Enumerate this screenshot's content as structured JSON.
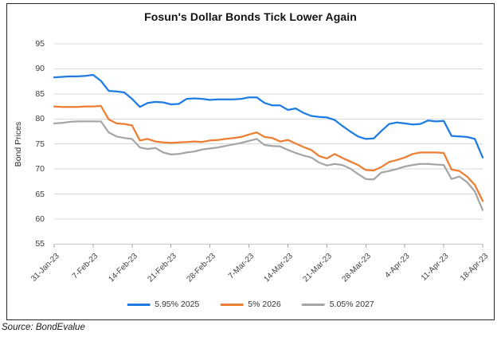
{
  "chart_data": {
    "type": "line",
    "title": "Fosun's Dollar Bonds Tick Lower Again",
    "ylabel": "Bond Prices",
    "source": "Source: BondEvalue",
    "ylim": [
      55,
      95
    ],
    "ytick_step": 5,
    "y_tick_labels": [
      "95",
      "90",
      "85",
      "80",
      "75",
      "70",
      "65",
      "60",
      "55"
    ],
    "grid": true,
    "legend_position": "bottom",
    "n_points": 56,
    "x_tick_indices": [
      0,
      5,
      10,
      15,
      20,
      25,
      30,
      35,
      40,
      45,
      50,
      55
    ],
    "x_tick_labels": [
      "31-Jan-23",
      "7-Feb-23",
      "14-Feb-23",
      "21-Feb-23",
      "28-Feb-23",
      "7-Mar-23",
      "14-Mar-23",
      "21-Mar-23",
      "28-Mar-23",
      "4-Apr-23",
      "11-Apr-23",
      "18-Apr-23"
    ],
    "series": [
      {
        "name": "5.95% 2025",
        "color": "#1E7BE4",
        "values": [
          88.3,
          88.4,
          88.5,
          88.5,
          88.6,
          88.8,
          87.6,
          85.6,
          85.5,
          85.3,
          84.0,
          82.4,
          83.2,
          83.4,
          83.3,
          82.9,
          83.0,
          84.0,
          84.1,
          84.0,
          83.8,
          83.9,
          83.9,
          83.9,
          84.0,
          84.3,
          84.3,
          83.2,
          82.7,
          82.7,
          81.8,
          82.1,
          81.2,
          80.6,
          80.4,
          80.3,
          79.8,
          78.6,
          77.5,
          76.5,
          76.0,
          76.1,
          77.6,
          79.0,
          79.3,
          79.1,
          78.9,
          79.0,
          79.7,
          79.5,
          79.6,
          76.6,
          76.5,
          76.4,
          76.0,
          72.3
        ]
      },
      {
        "name": "5% 2026",
        "color": "#ED7D31",
        "values": [
          82.5,
          82.4,
          82.4,
          82.4,
          82.5,
          82.5,
          82.6,
          79.9,
          79.1,
          79.0,
          78.7,
          75.7,
          76.0,
          75.5,
          75.3,
          75.2,
          75.3,
          75.4,
          75.5,
          75.4,
          75.7,
          75.8,
          76.0,
          76.2,
          76.4,
          76.9,
          77.3,
          76.4,
          76.2,
          75.5,
          75.8,
          75.1,
          74.4,
          73.8,
          72.6,
          72.1,
          73.0,
          72.2,
          71.5,
          70.8,
          69.8,
          69.7,
          70.4,
          71.4,
          71.8,
          72.3,
          73.0,
          73.3,
          73.3,
          73.3,
          73.2,
          69.9,
          69.6,
          68.5,
          66.8,
          63.6
        ]
      },
      {
        "name": "5.05% 2027",
        "color": "#A6A6A6",
        "values": [
          79.1,
          79.2,
          79.4,
          79.5,
          79.5,
          79.5,
          79.5,
          77.3,
          76.5,
          76.2,
          76.0,
          74.3,
          74.0,
          74.2,
          73.3,
          72.9,
          73.0,
          73.3,
          73.5,
          73.9,
          74.1,
          74.3,
          74.6,
          74.9,
          75.2,
          75.6,
          76.0,
          74.8,
          74.6,
          74.5,
          73.8,
          73.2,
          72.7,
          72.3,
          71.3,
          70.7,
          71.0,
          70.8,
          70.1,
          69.0,
          68.0,
          67.9,
          69.3,
          69.6,
          70.0,
          70.5,
          70.8,
          71.0,
          71.0,
          70.9,
          70.8,
          68.0,
          68.5,
          67.4,
          65.5,
          61.8
        ]
      }
    ],
    "colors": {
      "grid": "#D9D9D9",
      "axis_line": "#C6C6C6",
      "tick_mark": "#A6A6A6",
      "axis_text": "#3C3C3C"
    }
  }
}
